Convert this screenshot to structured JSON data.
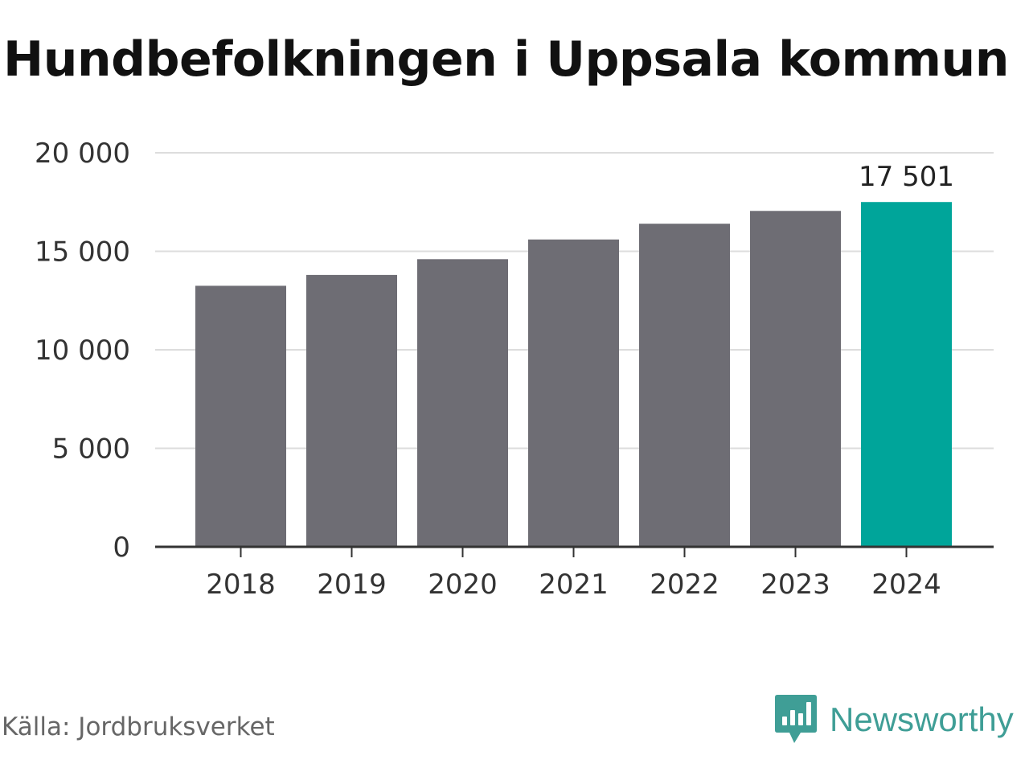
{
  "title": "Hundbefolkningen i Uppsala kommun",
  "source": "Källa: Jordbruksverket",
  "brand": {
    "name": "Newsworthy",
    "icon": "newsworthy-logo-icon",
    "color": "#3f9e96"
  },
  "colors": {
    "bar": "#6e6d74",
    "highlight": "#00a59a",
    "grid": "#dddddd",
    "axis": "#333333"
  },
  "chart_data": {
    "type": "bar",
    "title": "Hundbefolkningen i Uppsala kommun",
    "xlabel": "",
    "ylabel": "",
    "categories": [
      "2018",
      "2019",
      "2020",
      "2021",
      "2022",
      "2023",
      "2024"
    ],
    "values": [
      13250,
      13800,
      14600,
      15600,
      16400,
      17050,
      17501
    ],
    "highlight_index": 6,
    "data_labels": [
      {
        "index": 6,
        "text": "17 501"
      }
    ],
    "ylim": [
      0,
      20000
    ],
    "yticks": [
      0,
      5000,
      10000,
      15000,
      20000
    ],
    "ytick_labels": [
      "0",
      "5 000",
      "10 000",
      "15 000",
      "20 000"
    ],
    "grid": true,
    "legend": "none"
  }
}
